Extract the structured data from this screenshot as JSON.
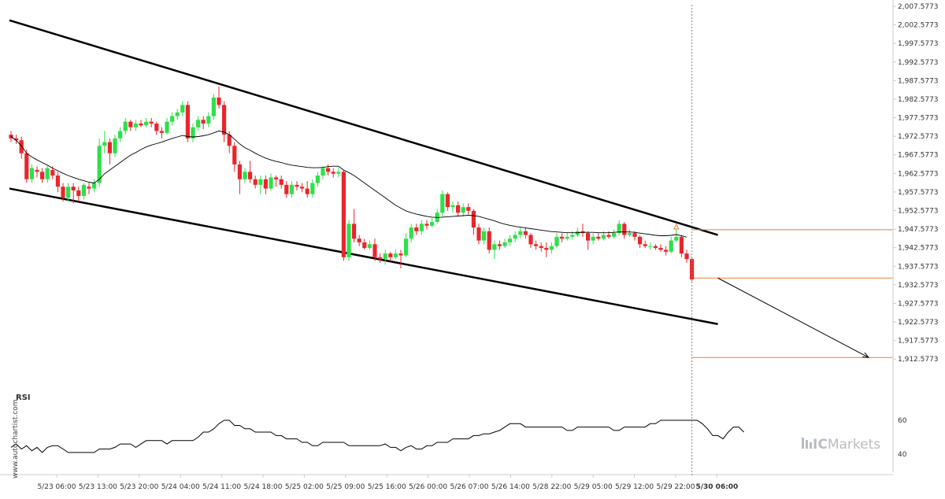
{
  "chart_data": {
    "type": "candlestick",
    "price_axis": {
      "min": 1910.0773,
      "max": 2007.5773,
      "ticks": [
        "2,007.5773",
        "2,002.5773",
        "1,997.5773",
        "1,992.5773",
        "1,987.5773",
        "1,982.5773",
        "1,977.5773",
        "1,972.5773",
        "1,967.5773",
        "1,962.5773",
        "1,957.5773",
        "1,952.5773",
        "1,947.5773",
        "1,942.5773",
        "1,937.5773",
        "1,932.5773",
        "1,927.5773",
        "1,922.5773",
        "1,917.5773",
        "1,912.5773"
      ]
    },
    "x_labels": [
      "5/23 06:00",
      "5/23 13:00",
      "5/23 20:00",
      "5/24 04:00",
      "5/24 11:00",
      "5/24 18:00",
      "5/25 02:00",
      "5/25 09:00",
      "5/25 16:00",
      "5/26 00:00",
      "5/26 07:00",
      "5/26 14:00",
      "5/28 22:00",
      "5/29 05:00",
      "5/29 12:00",
      "5/29 22:00",
      "5/30 06:00"
    ],
    "highlight_x_label": "5/30 06:00",
    "candles": [
      [
        1973.0,
        1972.0,
        1974.0,
        1971.0
      ],
      [
        1972.0,
        1971.5,
        1973.0,
        1970.5
      ],
      [
        1971.5,
        1968.0,
        1972.5,
        1966.5
      ],
      [
        1968.0,
        1961.0,
        1969.0,
        1960.0
      ],
      [
        1961.0,
        1964.0,
        1965.0,
        1960.0
      ],
      [
        1963.5,
        1963.0,
        1964.5,
        1961.5
      ],
      [
        1963.0,
        1961.0,
        1964.0,
        1960.0
      ],
      [
        1961.0,
        1964.0,
        1964.5,
        1960.0
      ],
      [
        1963.5,
        1962.0,
        1964.5,
        1961.0
      ],
      [
        1962.0,
        1959.0,
        1963.0,
        1957.5
      ],
      [
        1959.0,
        1956.0,
        1960.0,
        1955.0
      ],
      [
        1956.0,
        1959.0,
        1960.0,
        1955.0
      ],
      [
        1959.0,
        1958.0,
        1960.0,
        1954.5
      ],
      [
        1958.0,
        1956.5,
        1959.0,
        1955.0
      ],
      [
        1956.5,
        1959.5,
        1960.0,
        1955.5
      ],
      [
        1959.0,
        1958.5,
        1960.0,
        1957.0
      ],
      [
        1958.5,
        1960.0,
        1961.0,
        1957.5
      ],
      [
        1960.0,
        1970.0,
        1972.0,
        1959.0
      ],
      [
        1970.0,
        1971.0,
        1974.0,
        1968.0
      ],
      [
        1971.0,
        1968.0,
        1972.0,
        1965.0
      ],
      [
        1968.0,
        1972.0,
        1973.0,
        1967.0
      ],
      [
        1972.0,
        1974.0,
        1975.0,
        1971.0
      ],
      [
        1974.0,
        1976.5,
        1977.5,
        1973.0
      ],
      [
        1976.5,
        1975.0,
        1977.0,
        1974.0
      ],
      [
        1975.0,
        1976.0,
        1977.0,
        1974.0
      ],
      [
        1976.0,
        1975.5,
        1977.0,
        1975.0
      ],
      [
        1975.5,
        1976.5,
        1977.5,
        1975.0
      ],
      [
        1976.5,
        1976.0,
        1977.5,
        1975.0
      ],
      [
        1976.0,
        1974.0,
        1976.5,
        1973.0
      ],
      [
        1974.0,
        1973.5,
        1975.0,
        1972.0
      ],
      [
        1973.5,
        1976.5,
        1977.5,
        1973.0
      ],
      [
        1976.5,
        1978.0,
        1979.0,
        1975.5
      ],
      [
        1978.0,
        1979.0,
        1980.0,
        1977.0
      ],
      [
        1979.0,
        1981.0,
        1982.0,
        1978.0
      ],
      [
        1981.0,
        1972.0,
        1982.0,
        1971.0
      ],
      [
        1972.0,
        1975.0,
        1976.0,
        1971.0
      ],
      [
        1975.0,
        1977.0,
        1978.0,
        1974.0
      ],
      [
        1977.0,
        1976.0,
        1978.0,
        1974.5
      ],
      [
        1976.0,
        1978.0,
        1979.0,
        1975.0
      ],
      [
        1978.0,
        1983.0,
        1984.0,
        1977.0
      ],
      [
        1983.0,
        1981.0,
        1986.0,
        1980.0
      ],
      [
        1981.0,
        1973.0,
        1982.0,
        1971.0
      ],
      [
        1973.0,
        1970.0,
        1974.0,
        1968.0
      ],
      [
        1970.0,
        1965.0,
        1971.0,
        1963.0
      ],
      [
        1965.0,
        1961.0,
        1966.0,
        1957.0
      ],
      [
        1961.0,
        1963.0,
        1964.0,
        1960.0
      ],
      [
        1963.0,
        1961.0,
        1966.0,
        1960.0
      ],
      [
        1961.0,
        1959.5,
        1962.0,
        1958.5
      ],
      [
        1959.5,
        1961.0,
        1962.0,
        1957.0
      ],
      [
        1961.0,
        1958.5,
        1962.0,
        1957.0
      ],
      [
        1958.5,
        1961.5,
        1962.5,
        1958.0
      ],
      [
        1961.5,
        1961.0,
        1962.0,
        1959.0
      ],
      [
        1961.0,
        1959.5,
        1962.0,
        1958.5
      ],
      [
        1959.5,
        1957.0,
        1960.5,
        1956.0
      ],
      [
        1957.0,
        1959.5,
        1960.5,
        1956.0
      ],
      [
        1959.5,
        1959.0,
        1960.5,
        1958.0
      ],
      [
        1959.0,
        1958.5,
        1960.0,
        1957.5
      ],
      [
        1958.5,
        1957.0,
        1960.5,
        1956.0
      ],
      [
        1957.0,
        1960.0,
        1961.0,
        1956.0
      ],
      [
        1960.0,
        1962.0,
        1963.0,
        1959.0
      ],
      [
        1962.0,
        1964.0,
        1964.5,
        1961.0
      ],
      [
        1964.0,
        1963.0,
        1965.0,
        1962.0
      ],
      [
        1963.0,
        1962.5,
        1964.0,
        1961.5
      ],
      [
        1962.5,
        1963.0,
        1964.0,
        1961.5
      ],
      [
        1963.0,
        1940.0,
        1963.5,
        1939.0
      ],
      [
        1940.0,
        1949.0,
        1950.0,
        1939.0
      ],
      [
        1949.0,
        1945.0,
        1953.0,
        1944.0
      ],
      [
        1945.0,
        1944.0,
        1946.0,
        1943.0
      ],
      [
        1944.0,
        1942.5,
        1945.0,
        1942.0
      ],
      [
        1942.5,
        1943.5,
        1944.5,
        1942.0
      ],
      [
        1943.5,
        1940.0,
        1945.0,
        1939.0
      ],
      [
        1940.0,
        1939.5,
        1941.0,
        1938.5
      ],
      [
        1939.5,
        1941.0,
        1942.0,
        1938.0
      ],
      [
        1941.0,
        1940.0,
        1941.5,
        1939.0
      ],
      [
        1940.0,
        1941.0,
        1942.0,
        1939.5
      ],
      [
        1941.0,
        1940.5,
        1942.0,
        1937.0
      ],
      [
        1940.5,
        1945.0,
        1946.5,
        1940.0
      ],
      [
        1945.0,
        1948.0,
        1949.0,
        1944.0
      ],
      [
        1948.0,
        1947.0,
        1949.0,
        1946.0
      ],
      [
        1947.0,
        1949.0,
        1950.0,
        1946.0
      ],
      [
        1949.0,
        1948.5,
        1950.0,
        1947.5
      ],
      [
        1948.5,
        1949.5,
        1950.5,
        1948.0
      ],
      [
        1949.5,
        1952.0,
        1953.0,
        1949.0
      ],
      [
        1952.0,
        1957.0,
        1958.0,
        1951.0
      ],
      [
        1957.0,
        1953.5,
        1957.5,
        1952.5
      ],
      [
        1953.5,
        1954.0,
        1955.0,
        1952.0
      ],
      [
        1954.0,
        1952.0,
        1955.0,
        1951.0
      ],
      [
        1952.0,
        1953.5,
        1954.5,
        1951.0
      ],
      [
        1953.5,
        1952.5,
        1954.5,
        1951.5
      ],
      [
        1952.5,
        1948.0,
        1953.0,
        1946.0
      ],
      [
        1948.0,
        1944.5,
        1949.0,
        1943.5
      ],
      [
        1944.5,
        1947.0,
        1948.0,
        1943.5
      ],
      [
        1947.0,
        1942.0,
        1948.0,
        1941.0
      ],
      [
        1942.0,
        1943.5,
        1944.5,
        1939.5
      ],
      [
        1943.5,
        1943.0,
        1944.5,
        1942.0
      ],
      [
        1943.0,
        1944.0,
        1945.0,
        1942.5
      ],
      [
        1944.0,
        1945.0,
        1946.0,
        1943.0
      ],
      [
        1945.0,
        1946.0,
        1947.0,
        1944.0
      ],
      [
        1946.0,
        1947.0,
        1948.0,
        1945.0
      ],
      [
        1947.0,
        1946.0,
        1948.0,
        1945.0
      ],
      [
        1946.0,
        1943.5,
        1946.5,
        1942.5
      ],
      [
        1943.5,
        1943.0,
        1944.5,
        1942.0
      ],
      [
        1943.0,
        1942.5,
        1944.0,
        1941.5
      ],
      [
        1942.5,
        1942.0,
        1944.0,
        1940.0
      ],
      [
        1942.0,
        1943.0,
        1944.0,
        1941.0
      ],
      [
        1943.0,
        1945.5,
        1946.5,
        1942.5
      ],
      [
        1945.5,
        1945.0,
        1946.5,
        1944.0
      ],
      [
        1945.0,
        1945.5,
        1946.5,
        1944.5
      ],
      [
        1945.5,
        1946.0,
        1947.0,
        1945.0
      ],
      [
        1946.0,
        1947.0,
        1948.0,
        1945.5
      ],
      [
        1947.0,
        1946.5,
        1949.0,
        1945.5
      ],
      [
        1946.5,
        1944.5,
        1947.0,
        1942.0
      ],
      [
        1944.5,
        1945.5,
        1946.5,
        1943.5
      ],
      [
        1945.5,
        1945.0,
        1946.5,
        1944.5
      ],
      [
        1945.0,
        1946.0,
        1947.0,
        1944.5
      ],
      [
        1946.0,
        1945.5,
        1947.0,
        1945.0
      ],
      [
        1945.5,
        1946.5,
        1947.5,
        1945.0
      ],
      [
        1946.5,
        1949.0,
        1950.0,
        1946.0
      ],
      [
        1949.0,
        1946.0,
        1949.5,
        1945.0
      ],
      [
        1946.0,
        1946.5,
        1947.5,
        1945.5
      ],
      [
        1946.5,
        1945.5,
        1947.0,
        1944.5
      ],
      [
        1945.5,
        1943.5,
        1946.0,
        1942.5
      ],
      [
        1943.5,
        1943.0,
        1944.5,
        1942.5
      ],
      [
        1943.0,
        1943.0,
        1944.0,
        1942.0
      ],
      [
        1943.0,
        1942.5,
        1943.5,
        1942.0
      ],
      [
        1942.5,
        1942.0,
        1943.5,
        1941.5
      ],
      [
        1942.0,
        1941.5,
        1943.0,
        1940.5
      ],
      [
        1941.5,
        1944.5,
        1945.5,
        1941.0
      ],
      [
        1944.5,
        1945.5,
        1947.5,
        1944.0
      ],
      [
        1945.5,
        1941.0,
        1946.0,
        1940.0
      ],
      [
        1941.0,
        1939.5,
        1942.0,
        1938.5
      ],
      [
        1939.5,
        1934.0,
        1940.0,
        1933.5
      ]
    ],
    "moving_average": [
      1972.5,
      1971.5,
      1970,
      1968,
      1967,
      1966.2,
      1965.5,
      1964.8,
      1964,
      1963.3,
      1962.6,
      1962,
      1961.5,
      1961,
      1960.6,
      1960.2,
      1960,
      1961,
      1962.5,
      1963.5,
      1964.5,
      1965.5,
      1966.5,
      1967.5,
      1968.2,
      1969,
      1969.7,
      1970.2,
      1970.6,
      1971,
      1971.5,
      1972,
      1972.4,
      1972.8,
      1972.5,
      1972.4,
      1972.5,
      1972.7,
      1973,
      1973.5,
      1974,
      1973.7,
      1973,
      1971.8,
      1970.5,
      1969.5,
      1968.8,
      1968,
      1967.3,
      1966.7,
      1966.2,
      1965.8,
      1965.5,
      1965.1,
      1964.8,
      1964.6,
      1964.4,
      1964.2,
      1964.1,
      1964.1,
      1964.2,
      1964.4,
      1964.5,
      1964.5,
      1963.5,
      1962.8,
      1962,
      1961,
      1960,
      1959,
      1958,
      1957,
      1956,
      1955,
      1954,
      1953.2,
      1952.5,
      1952,
      1951.6,
      1951.3,
      1951,
      1950.8,
      1950.7,
      1950.8,
      1950.9,
      1951,
      1951.1,
      1951.2,
      1951.3,
      1951.2,
      1951,
      1950.6,
      1950.2,
      1949.8,
      1949.3,
      1948.9,
      1948.6,
      1948.3,
      1948.1,
      1947.9,
      1947.7,
      1947.5,
      1947.3,
      1947.1,
      1946.9,
      1946.8,
      1946.7,
      1946.6,
      1946.6,
      1946.6,
      1946.7,
      1946.7,
      1946.7,
      1946.6,
      1946.6,
      1946.6,
      1946.7,
      1946.8,
      1946.8,
      1946.8,
      1946.7,
      1946.5,
      1946.3,
      1946.1,
      1945.9,
      1945.8,
      1945.8,
      1945.9,
      1946.1,
      1945.8,
      1945.4
    ],
    "channel": {
      "upper": {
        "from": [
          0,
          2003.8
        ],
        "to": [
          136,
          1946.0
        ]
      },
      "lower": {
        "from": [
          0,
          1958.5
        ],
        "to": [
          136,
          1922.0
        ]
      }
    },
    "projection": {
      "from": [
        136,
        1934.4
      ],
      "to": [
        165,
        1913.0
      ],
      "levels": [
        1947.4,
        1934.4,
        1913.0
      ],
      "level_color": "#e8823b"
    },
    "rsi": {
      "title": "RSI",
      "ylim": [
        30,
        70
      ],
      "ticks": [
        "60",
        "40"
      ],
      "values": [
        44,
        46,
        43,
        45,
        42,
        44,
        41,
        44,
        45,
        45,
        43,
        41,
        41,
        41,
        41,
        41,
        41,
        43,
        43,
        43,
        44,
        46,
        46,
        46,
        44,
        46,
        48,
        48,
        48,
        48,
        46,
        48,
        48,
        48,
        48,
        48,
        50,
        53,
        53,
        55,
        58,
        60,
        60,
        57,
        57,
        55,
        55,
        53,
        53,
        53,
        53,
        51,
        51,
        49,
        49,
        49,
        47,
        47,
        45,
        45,
        47,
        47,
        47,
        47,
        47,
        45,
        45,
        45,
        45,
        45,
        45,
        45,
        46,
        44,
        44,
        42,
        44,
        45,
        43,
        43,
        45,
        45,
        47,
        47,
        47,
        49,
        49,
        49,
        49,
        51,
        51,
        52,
        52,
        53,
        54,
        56,
        58,
        58,
        58,
        56,
        56,
        56,
        56,
        56,
        56,
        56,
        56,
        54,
        54,
        56,
        56,
        56,
        56,
        56,
        56,
        56,
        54,
        54,
        56,
        56,
        56,
        56,
        56,
        58,
        58,
        60,
        60,
        60,
        60,
        60,
        60,
        60,
        60,
        58,
        55,
        51,
        51,
        49,
        53,
        56,
        56,
        53
      ]
    },
    "colors": {
      "bull": "#2ee04a",
      "bear": "#e8262b",
      "line": "#000000",
      "grid_axis": "#cccccc",
      "vline": "#888888"
    },
    "watermark": "www.autochartist.com",
    "brand": {
      "prefix": "IC",
      "name": "Markets"
    }
  }
}
